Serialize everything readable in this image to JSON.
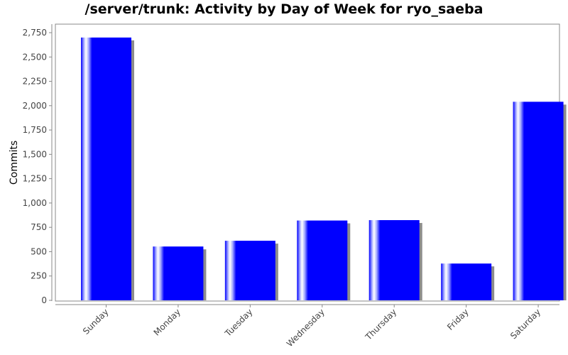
{
  "chart_data": {
    "type": "bar",
    "title": "/server/trunk: Activity by Day of Week for ryo_saeba",
    "xlabel": "",
    "ylabel": "Commits",
    "categories": [
      "Sunday",
      "Monday",
      "Tuesday",
      "Wednesday",
      "Thursday",
      "Friday",
      "Saturday"
    ],
    "values": [
      2700,
      553,
      612,
      820,
      824,
      378,
      2040
    ],
    "ylim": [
      0,
      2850
    ],
    "yticks": [
      "0",
      "250",
      "500",
      "750",
      "1,000",
      "1,250",
      "1,500",
      "1,750",
      "2,000",
      "2,250",
      "2,500",
      "2,750"
    ],
    "grid": false,
    "legend": "none",
    "bar_color": "#0000ff",
    "shadow_color": "#8c8c8c",
    "plot_border_color": "#888888"
  }
}
